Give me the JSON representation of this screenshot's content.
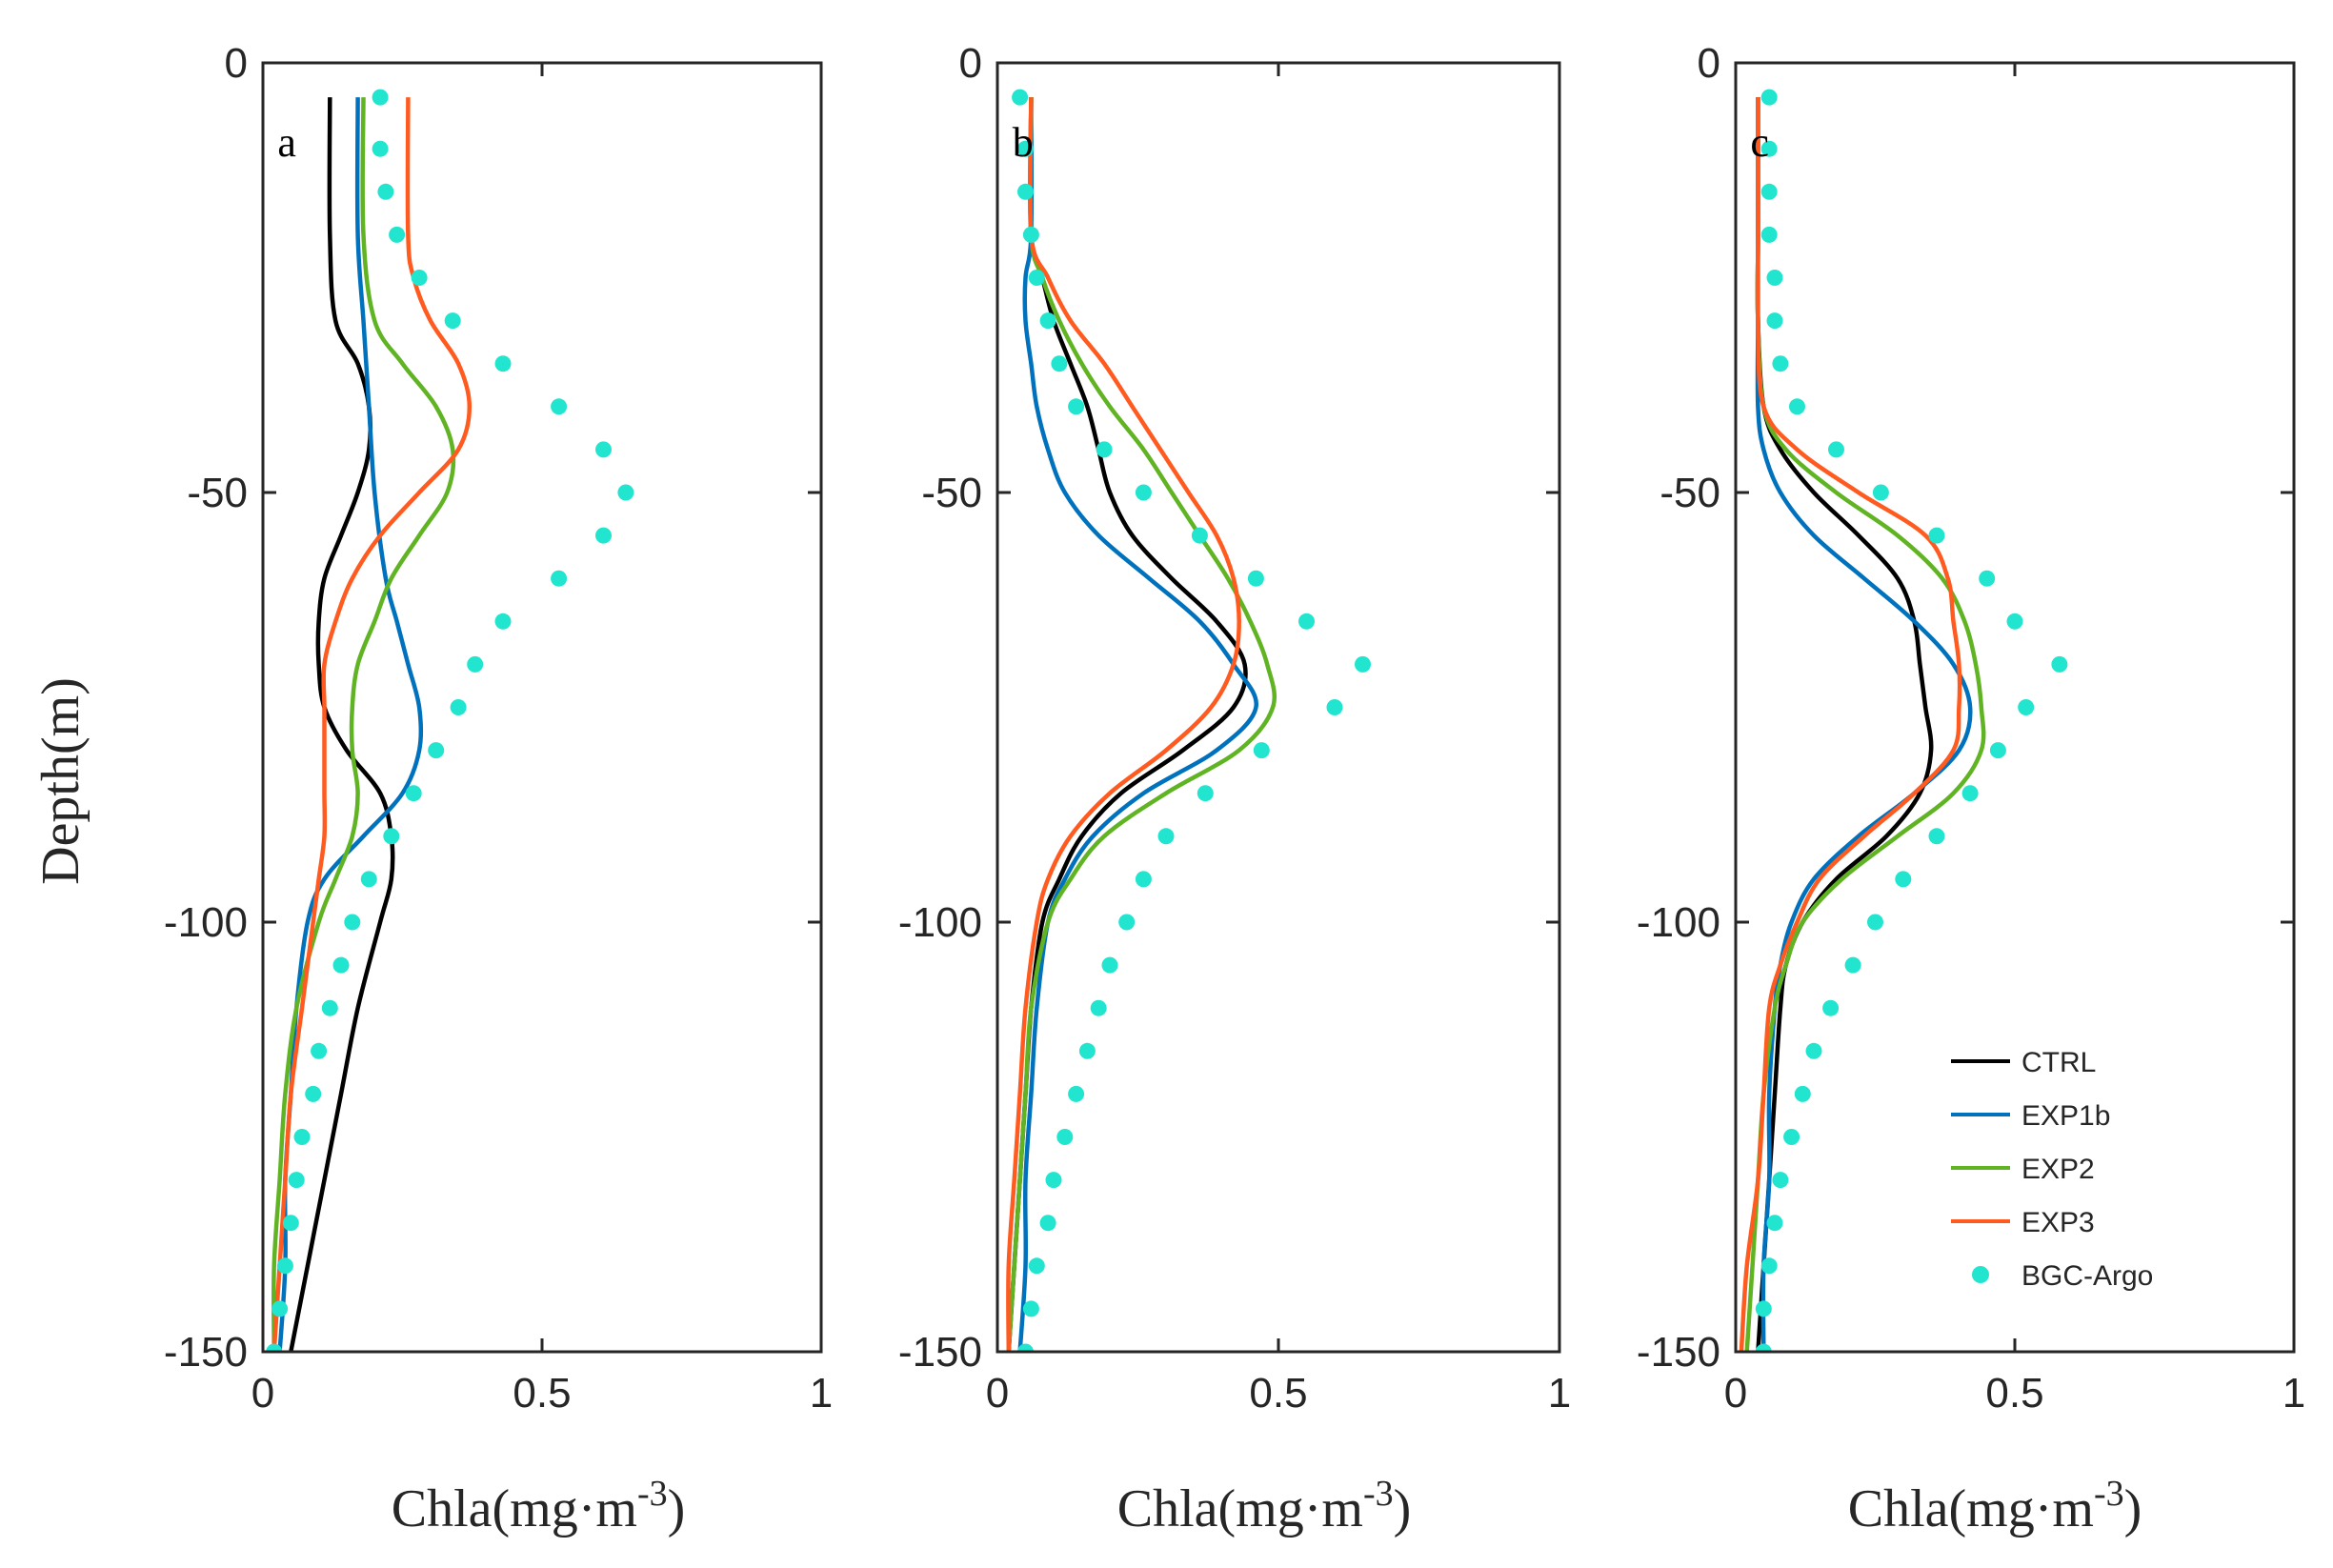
{
  "figure": {
    "ylabel": "Depth(m)",
    "xlabel_main": "Chla(mg·m",
    "xlabel_sup": "-3",
    "xlabel_close": ")"
  },
  "colors": {
    "CTRL": "#000000",
    "EXP1b": "#0072BD",
    "EXP2": "#60B424",
    "EXP3": "#FF5A1F",
    "BGC-Argo": "#22E5D0",
    "axis": "#262626"
  },
  "chart_data": [
    {
      "panel": "a",
      "type": "line",
      "xlim": [
        0,
        1
      ],
      "ylim": [
        -150,
        0
      ],
      "xticks": [
        "0",
        "0.5",
        "1"
      ],
      "yticks": [
        "0",
        "-50",
        "-100",
        "-150"
      ],
      "xlabel": "Chla(mg·m-3)",
      "ylabel": "Depth(m)",
      "series": [
        {
          "name": "CTRL",
          "depth": [
            -4,
            -20,
            -30,
            -35,
            -40,
            -45,
            -50,
            -55,
            -60,
            -65,
            -70,
            -75,
            -80,
            -85,
            -90,
            -95,
            -100,
            -110,
            -120,
            -130,
            -140,
            -150
          ],
          "values": [
            0.12,
            0.12,
            0.13,
            0.17,
            0.19,
            0.19,
            0.17,
            0.14,
            0.11,
            0.1,
            0.1,
            0.11,
            0.15,
            0.21,
            0.23,
            0.23,
            0.21,
            0.17,
            0.14,
            0.11,
            0.08,
            0.05
          ]
        },
        {
          "name": "EXP1b",
          "depth": [
            -4,
            -20,
            -30,
            -40,
            -50,
            -60,
            -65,
            -70,
            -75,
            -80,
            -85,
            -90,
            -95,
            -100,
            -110,
            -120,
            -130,
            -140,
            -150
          ],
          "values": [
            0.17,
            0.17,
            0.18,
            0.19,
            0.2,
            0.22,
            0.24,
            0.26,
            0.28,
            0.28,
            0.25,
            0.18,
            0.11,
            0.08,
            0.06,
            0.05,
            0.04,
            0.04,
            0.03
          ]
        },
        {
          "name": "EXP2",
          "depth": [
            -4,
            -20,
            -30,
            -35,
            -40,
            -45,
            -50,
            -55,
            -60,
            -65,
            -70,
            -75,
            -80,
            -85,
            -90,
            -95,
            -100,
            -110,
            -120,
            -130,
            -140,
            -150
          ],
          "values": [
            0.18,
            0.18,
            0.2,
            0.25,
            0.31,
            0.34,
            0.33,
            0.28,
            0.23,
            0.2,
            0.17,
            0.16,
            0.16,
            0.17,
            0.16,
            0.13,
            0.1,
            0.06,
            0.04,
            0.03,
            0.02,
            0.02
          ]
        },
        {
          "name": "EXP3",
          "depth": [
            -4,
            -20,
            -25,
            -30,
            -35,
            -40,
            -45,
            -50,
            -55,
            -60,
            -65,
            -70,
            -75,
            -80,
            -85,
            -90,
            -95,
            -100,
            -110,
            -120,
            -130,
            -140,
            -150
          ],
          "values": [
            0.26,
            0.26,
            0.27,
            0.3,
            0.35,
            0.37,
            0.35,
            0.28,
            0.21,
            0.16,
            0.13,
            0.11,
            0.11,
            0.11,
            0.11,
            0.11,
            0.1,
            0.09,
            0.07,
            0.05,
            0.04,
            0.03,
            0.02
          ]
        },
        {
          "name": "BGC-Argo",
          "marker": "dot",
          "depth": [
            -4,
            -10,
            -15,
            -20,
            -25,
            -30,
            -35,
            -40,
            -45,
            -50,
            -55,
            -60,
            -65,
            -70,
            -75,
            -80,
            -85,
            -90,
            -95,
            -100,
            -105,
            -110,
            -115,
            -120,
            -125,
            -130,
            -135,
            -140,
            -145,
            -150
          ],
          "values": [
            0.21,
            0.21,
            0.22,
            0.24,
            0.28,
            0.34,
            0.43,
            0.53,
            0.61,
            0.65,
            0.61,
            0.53,
            0.43,
            0.38,
            0.35,
            0.31,
            0.27,
            0.23,
            0.19,
            0.16,
            0.14,
            0.12,
            0.1,
            0.09,
            0.07,
            0.06,
            0.05,
            0.04,
            0.03,
            0.02
          ]
        }
      ]
    },
    {
      "panel": "b",
      "type": "line",
      "xlim": [
        0,
        1
      ],
      "ylim": [
        -150,
        0
      ],
      "xticks": [
        "0",
        "0.5",
        "1"
      ],
      "yticks": [
        "0",
        "-50",
        "-100",
        "-150"
      ],
      "xlabel": "Chla(mg·m-3)",
      "ylabel": "",
      "series": [
        {
          "name": "CTRL",
          "depth": [
            -4,
            -20,
            -25,
            -30,
            -35,
            -40,
            -45,
            -50,
            -55,
            -60,
            -65,
            -70,
            -75,
            -80,
            -85,
            -90,
            -95,
            -100,
            -110,
            -120,
            -130,
            -140,
            -150
          ],
          "values": [
            0.06,
            0.06,
            0.08,
            0.1,
            0.13,
            0.16,
            0.18,
            0.2,
            0.24,
            0.31,
            0.39,
            0.44,
            0.42,
            0.33,
            0.22,
            0.15,
            0.11,
            0.08,
            0.06,
            0.05,
            0.04,
            0.03,
            0.02
          ]
        },
        {
          "name": "EXP1b",
          "depth": [
            -4,
            -20,
            -25,
            -30,
            -35,
            -40,
            -45,
            -50,
            -55,
            -60,
            -65,
            -70,
            -75,
            -80,
            -85,
            -90,
            -95,
            -100,
            -110,
            -120,
            -130,
            -140,
            -150
          ],
          "values": [
            0.06,
            0.06,
            0.05,
            0.05,
            0.06,
            0.07,
            0.09,
            0.12,
            0.18,
            0.27,
            0.36,
            0.42,
            0.46,
            0.39,
            0.26,
            0.17,
            0.12,
            0.09,
            0.07,
            0.06,
            0.05,
            0.05,
            0.04
          ]
        },
        {
          "name": "EXP2",
          "depth": [
            -4,
            -20,
            -25,
            -30,
            -35,
            -40,
            -45,
            -50,
            -55,
            -60,
            -65,
            -70,
            -75,
            -80,
            -85,
            -90,
            -95,
            -100,
            -110,
            -120,
            -130,
            -140,
            -150
          ],
          "values": [
            0.06,
            0.06,
            0.08,
            0.11,
            0.15,
            0.2,
            0.26,
            0.31,
            0.36,
            0.41,
            0.45,
            0.48,
            0.49,
            0.43,
            0.3,
            0.19,
            0.13,
            0.09,
            0.06,
            0.05,
            0.04,
            0.03,
            0.02
          ]
        },
        {
          "name": "EXP3",
          "depth": [
            -4,
            -20,
            -25,
            -30,
            -35,
            -40,
            -45,
            -50,
            -55,
            -60,
            -65,
            -70,
            -75,
            -80,
            -85,
            -90,
            -95,
            -100,
            -110,
            -120,
            -130,
            -140,
            -150
          ],
          "values": [
            0.06,
            0.06,
            0.09,
            0.13,
            0.19,
            0.24,
            0.29,
            0.34,
            0.39,
            0.42,
            0.43,
            0.42,
            0.38,
            0.3,
            0.2,
            0.13,
            0.09,
            0.07,
            0.05,
            0.04,
            0.03,
            0.02,
            0.02
          ]
        },
        {
          "name": "BGC-Argo",
          "marker": "dot",
          "depth": [
            -4,
            -10,
            -15,
            -20,
            -25,
            -30,
            -35,
            -40,
            -45,
            -50,
            -55,
            -60,
            -65,
            -70,
            -75,
            -80,
            -85,
            -90,
            -95,
            -100,
            -105,
            -110,
            -115,
            -120,
            -125,
            -130,
            -135,
            -140,
            -145,
            -150
          ],
          "values": [
            0.04,
            0.05,
            0.05,
            0.06,
            0.07,
            0.09,
            0.11,
            0.14,
            0.19,
            0.26,
            0.36,
            0.46,
            0.55,
            0.65,
            0.6,
            0.47,
            0.37,
            0.3,
            0.26,
            0.23,
            0.2,
            0.18,
            0.16,
            0.14,
            0.12,
            0.1,
            0.09,
            0.07,
            0.06,
            0.05
          ]
        }
      ]
    },
    {
      "panel": "c",
      "type": "line",
      "xlim": [
        0,
        1
      ],
      "ylim": [
        -150,
        0
      ],
      "xticks": [
        "0",
        "0.5",
        "1"
      ],
      "yticks": [
        "0",
        "-50",
        "-100",
        "-150"
      ],
      "xlabel": "Chla(mg·m-3)",
      "ylabel": "",
      "legend": {
        "position": "bottom-right",
        "entries": [
          "CTRL",
          "EXP1b",
          "EXP2",
          "EXP3",
          "BGC-Argo"
        ]
      },
      "series": [
        {
          "name": "CTRL",
          "depth": [
            -4,
            -20,
            -30,
            -40,
            -45,
            -50,
            -55,
            -60,
            -65,
            -70,
            -75,
            -80,
            -85,
            -90,
            -95,
            -100,
            -105,
            -110,
            -120,
            -130,
            -140,
            -150
          ],
          "values": [
            0.04,
            0.04,
            0.04,
            0.05,
            0.08,
            0.14,
            0.22,
            0.29,
            0.32,
            0.33,
            0.34,
            0.35,
            0.33,
            0.27,
            0.18,
            0.12,
            0.09,
            0.08,
            0.07,
            0.06,
            0.05,
            0.04
          ]
        },
        {
          "name": "EXP1b",
          "depth": [
            -4,
            -20,
            -30,
            -40,
            -45,
            -50,
            -55,
            -60,
            -65,
            -70,
            -75,
            -80,
            -85,
            -90,
            -95,
            -100,
            -105,
            -110,
            -120,
            -130,
            -140,
            -150
          ],
          "values": [
            0.04,
            0.04,
            0.04,
            0.04,
            0.05,
            0.08,
            0.14,
            0.23,
            0.32,
            0.39,
            0.42,
            0.4,
            0.32,
            0.22,
            0.14,
            0.1,
            0.08,
            0.07,
            0.06,
            0.06,
            0.05,
            0.05
          ]
        },
        {
          "name": "EXP2",
          "depth": [
            -4,
            -20,
            -30,
            -40,
            -45,
            -50,
            -55,
            -60,
            -65,
            -70,
            -75,
            -80,
            -85,
            -90,
            -95,
            -100,
            -105,
            -110,
            -120,
            -130,
            -140,
            -150
          ],
          "values": [
            0.04,
            0.04,
            0.04,
            0.05,
            0.09,
            0.18,
            0.29,
            0.37,
            0.41,
            0.43,
            0.44,
            0.44,
            0.39,
            0.29,
            0.19,
            0.12,
            0.09,
            0.07,
            0.05,
            0.04,
            0.03,
            0.02
          ]
        },
        {
          "name": "EXP3",
          "depth": [
            -4,
            -20,
            -30,
            -40,
            -45,
            -50,
            -55,
            -60,
            -65,
            -70,
            -75,
            -80,
            -85,
            -90,
            -95,
            -100,
            -105,
            -110,
            -120,
            -130,
            -140,
            -150
          ],
          "values": [
            0.04,
            0.04,
            0.04,
            0.05,
            0.11,
            0.22,
            0.34,
            0.38,
            0.39,
            0.4,
            0.4,
            0.39,
            0.32,
            0.23,
            0.15,
            0.11,
            0.08,
            0.06,
            0.05,
            0.04,
            0.02,
            0.01
          ]
        },
        {
          "name": "BGC-Argo",
          "marker": "dot",
          "depth": [
            -4,
            -10,
            -15,
            -20,
            -25,
            -30,
            -35,
            -40,
            -45,
            -50,
            -55,
            -60,
            -65,
            -70,
            -75,
            -80,
            -85,
            -90,
            -95,
            -100,
            -105,
            -110,
            -115,
            -120,
            -125,
            -130,
            -135,
            -140,
            -145,
            -150
          ],
          "values": [
            0.06,
            0.06,
            0.06,
            0.06,
            0.07,
            0.07,
            0.08,
            0.11,
            0.18,
            0.26,
            0.36,
            0.45,
            0.5,
            0.58,
            0.52,
            0.47,
            0.42,
            0.36,
            0.3,
            0.25,
            0.21,
            0.17,
            0.14,
            0.12,
            0.1,
            0.08,
            0.07,
            0.06,
            0.05,
            0.05
          ]
        }
      ]
    }
  ]
}
